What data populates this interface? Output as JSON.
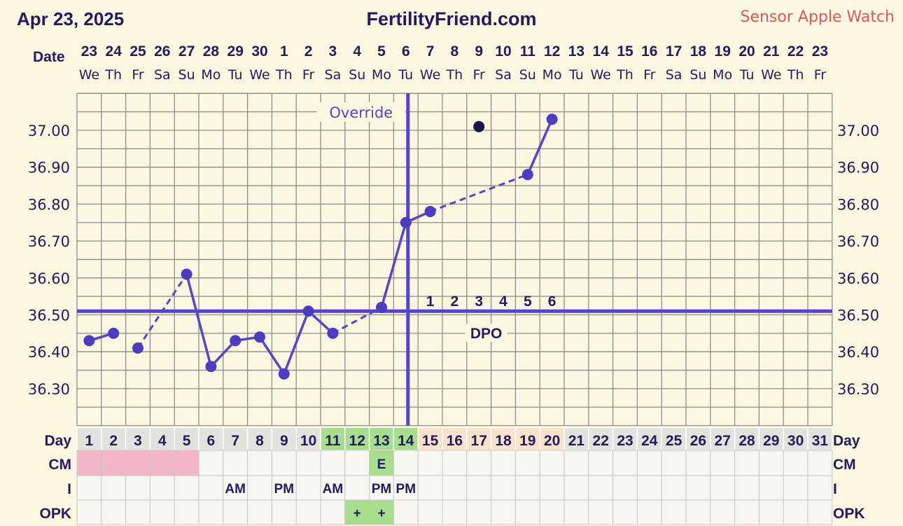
{
  "header": {
    "date": "Apr 23, 2025",
    "site": "FertilityFriend.com",
    "sensor": "Sensor Apple Watch"
  },
  "labels": {
    "date_row": "Date",
    "day_row": "Day",
    "cm_row": "CM",
    "i_row": "I",
    "opk_row": "OPK",
    "override": "Override",
    "dpo": "DPO"
  },
  "colors": {
    "background": "#fbf7e1",
    "line": "#5546c8",
    "dot": "#4b3cc0",
    "outlier_dot": "#1a1548",
    "grid": "#8c8c8c",
    "pink": "#f3b6c9",
    "green": "#a6de8e",
    "peach": "#fde2cb",
    "cell_gray": "#e4e2dc",
    "cell_light": "#f7f6f2"
  },
  "chart_data": {
    "type": "line",
    "title": "",
    "ylabel": "",
    "ylim": [
      36.2,
      37.1
    ],
    "yticks": [
      "37.00",
      "36.90",
      "36.80",
      "36.70",
      "36.60",
      "36.50",
      "36.40",
      "36.30"
    ],
    "coverline": 36.51,
    "ovulation_day": 14,
    "dates": [
      "23",
      "24",
      "25",
      "26",
      "27",
      "28",
      "29",
      "30",
      "1",
      "2",
      "3",
      "4",
      "5",
      "6",
      "7",
      "8",
      "9",
      "10",
      "11",
      "12",
      "13",
      "14",
      "15",
      "16",
      "17",
      "18",
      "19",
      "20",
      "21",
      "22",
      "23"
    ],
    "weekdays": [
      "We",
      "Th",
      "Fr",
      "Sa",
      "Su",
      "Mo",
      "Tu",
      "We",
      "Th",
      "Fr",
      "Sa",
      "Su",
      "Mo",
      "Tu",
      "We",
      "Th",
      "Fr",
      "Sa",
      "Su",
      "Mo",
      "Tu",
      "We",
      "Th",
      "Fr",
      "Sa",
      "Su",
      "Mo",
      "Tu",
      "We",
      "Th",
      "Fr"
    ],
    "cycle_days": [
      "1",
      "2",
      "3",
      "4",
      "5",
      "6",
      "7",
      "8",
      "9",
      "10",
      "11",
      "12",
      "13",
      "14",
      "15",
      "16",
      "17",
      "18",
      "19",
      "20",
      "21",
      "22",
      "23",
      "24",
      "25",
      "26",
      "27",
      "28",
      "29",
      "30",
      "31"
    ],
    "temps": [
      {
        "day": 1,
        "temp": 36.43
      },
      {
        "day": 2,
        "temp": 36.45
      },
      {
        "day": 3,
        "temp": 36.41
      },
      {
        "day": 5,
        "temp": 36.61
      },
      {
        "day": 6,
        "temp": 36.36
      },
      {
        "day": 7,
        "temp": 36.43
      },
      {
        "day": 8,
        "temp": 36.44
      },
      {
        "day": 9,
        "temp": 36.34
      },
      {
        "day": 10,
        "temp": 36.51
      },
      {
        "day": 11,
        "temp": 36.45
      },
      {
        "day": 13,
        "temp": 36.52
      },
      {
        "day": 14,
        "temp": 36.75
      },
      {
        "day": 15,
        "temp": 36.78
      },
      {
        "day": 19,
        "temp": 36.88
      },
      {
        "day": 20,
        "temp": 37.03
      }
    ],
    "discarded": [
      {
        "day": 17,
        "temp": 37.01
      }
    ],
    "segments_solid": [
      [
        1,
        2
      ],
      [
        5,
        6
      ],
      [
        6,
        7
      ],
      [
        7,
        8
      ],
      [
        8,
        9
      ],
      [
        9,
        10
      ],
      [
        10,
        11
      ],
      [
        13,
        14
      ],
      [
        14,
        15
      ],
      [
        19,
        20
      ]
    ],
    "segments_dashed": [
      [
        3,
        5
      ],
      [
        11,
        13
      ],
      [
        15,
        19
      ]
    ],
    "dpo_labels": [
      "1",
      "2",
      "3",
      "4",
      "5",
      "6"
    ],
    "day_cell_colors": {
      "11": "green",
      "12": "green",
      "13": "green",
      "14": "green",
      "15": "peach",
      "16": "peach",
      "17": "peach",
      "18": "peach",
      "19": "peach",
      "20": "peach"
    },
    "cm": {
      "pink_days": [
        1,
        2,
        3,
        4,
        5
      ],
      "marks": [
        {
          "day": 13,
          "text": "E",
          "color": "green"
        }
      ]
    },
    "intercourse": [
      {
        "day": 7,
        "text": "AM"
      },
      {
        "day": 9,
        "text": "PM"
      },
      {
        "day": 11,
        "text": "AM"
      },
      {
        "day": 13,
        "text": "PM"
      },
      {
        "day": 14,
        "text": "PM"
      }
    ],
    "opk": [
      {
        "day": 12,
        "text": "+",
        "color": "green"
      },
      {
        "day": 13,
        "text": "+",
        "color": "green"
      }
    ]
  }
}
